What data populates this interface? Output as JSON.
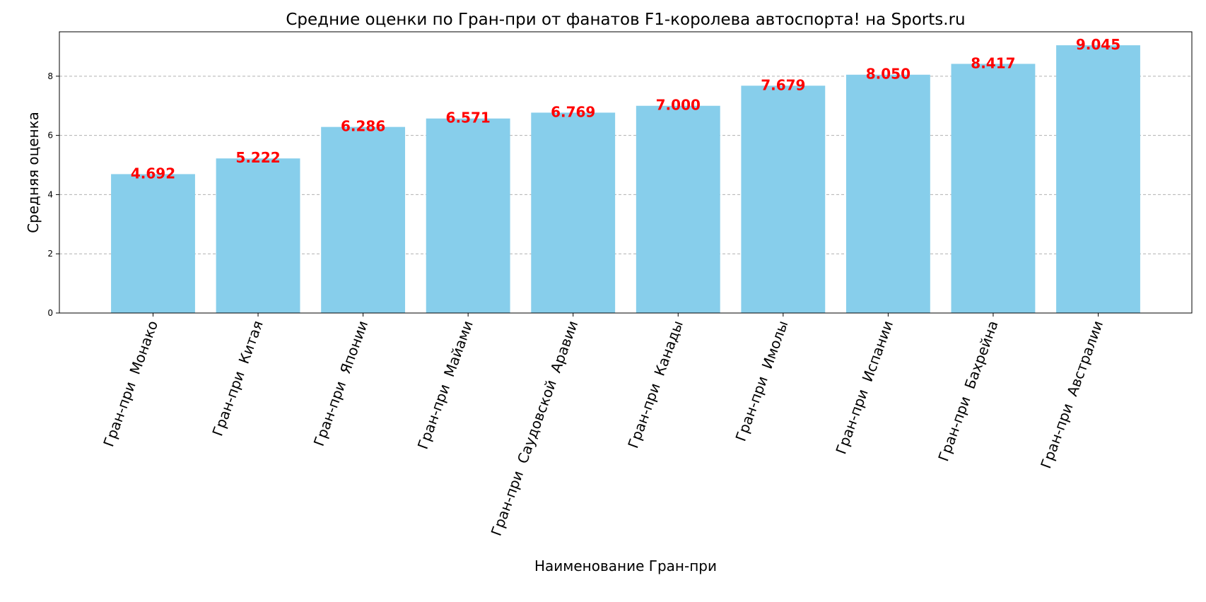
{
  "chart_data": {
    "type": "bar",
    "title": "Средние оценки по Гран-при от фанатов F1-королева автоспорта! на Sports.ru",
    "xlabel": "Наименование Гран-при",
    "ylabel": "Средняя оценка",
    "categories": [
      "Гран-при  Монако",
      "Гран-при  Китая",
      "Гран-при  Японии",
      "Гран-при  Майами",
      "Гран-при  Саудовской  Аравии",
      "Гран-при  Канады",
      "Гран-при  Имолы",
      "Гран-при  Испании",
      "Гран-при  Бахрейна",
      "Гран-при  Австралии"
    ],
    "values": [
      4.692,
      5.222,
      6.286,
      6.571,
      6.769,
      7.0,
      7.679,
      8.05,
      8.417,
      9.045
    ],
    "data_labels": [
      "4.692",
      "5.222",
      "6.286",
      "6.571",
      "6.769",
      "7.000",
      "7.679",
      "8.050",
      "8.417",
      "9.045"
    ],
    "yticks": [
      0,
      2,
      4,
      6,
      8
    ],
    "ylim": [
      0,
      9.5
    ],
    "grid": "y",
    "bar_color": "#87ceeb",
    "label_color": "#ff0000"
  }
}
